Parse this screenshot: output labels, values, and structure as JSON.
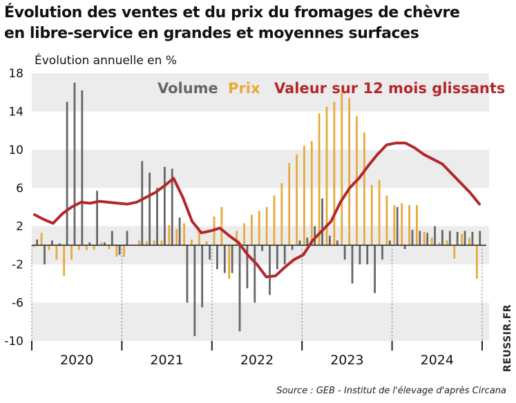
{
  "header": {
    "title_line1": "Évolution des ventes et du prix du fromages de chèvre",
    "title_line2": "en libre-service en grandes et moyennes surfaces"
  },
  "source": "Source : GEB - Institut de l'élevage d'après Circana",
  "watermark": "REUSSIR.FR",
  "colors": {
    "volume": "#666666",
    "prix": "#e8a93a",
    "valeur": "#b3272a",
    "band": "#ececec"
  },
  "chart_data": {
    "type": "bar",
    "ylabel": "Évolution annuelle en %",
    "ylim": [
      -10,
      18
    ],
    "yticks": [
      18,
      14,
      10,
      6,
      2,
      -2,
      -6,
      -10
    ],
    "ytick_labels": [
      "18",
      "14",
      "10",
      "6",
      "2",
      "-2",
      "-6",
      "-10"
    ],
    "years": [
      "2020",
      "2021",
      "2022",
      "2023",
      "2024"
    ],
    "months_per_year": 12,
    "series": [
      {
        "name": "Volume",
        "type": "bar",
        "values": [
          0.6,
          -2.0,
          0.5,
          0.2,
          15,
          17,
          16.2,
          0.3,
          5.7,
          0.3,
          1.5,
          -1.0,
          1.5,
          0,
          8.8,
          7.6,
          6.0,
          8.2,
          8.0,
          2.9,
          -6.0,
          -9.5,
          -6.5,
          -1.5,
          -2.5,
          -2.9,
          -2.9,
          -9.0,
          -4.5,
          -6.0,
          -0.6,
          -5.2,
          -2.5,
          -2.0,
          -0.5,
          0.5,
          0.8,
          2.0,
          4.9,
          1.0,
          0.5,
          -1.5,
          -4.0,
          -2.0,
          -2.0,
          -5.0,
          -1.5,
          0.5,
          4.0,
          -0.4,
          1.6,
          1.5,
          1.3,
          2.0,
          1.6,
          1.5,
          1.4,
          1.5,
          1.4,
          1.5
        ],
        "offsets": [
          0,
          1,
          0,
          1,
          0,
          1,
          0,
          1,
          0,
          1,
          0,
          1,
          0,
          1,
          0,
          1,
          0,
          1,
          0,
          1,
          0,
          1,
          0,
          1,
          0,
          1,
          0,
          1,
          0,
          1,
          0,
          1,
          0,
          1,
          0,
          1,
          0,
          1,
          0,
          1,
          0,
          1,
          0,
          1,
          0,
          1,
          0,
          1,
          0,
          1,
          0,
          1,
          0,
          1,
          0,
          1,
          0,
          1,
          0,
          1
        ]
      },
      {
        "name": "Prix",
        "type": "bar",
        "values": [
          -0.2,
          1.3,
          -0.5,
          -1.5,
          -3.2,
          -1.5,
          -0.5,
          -0.5,
          -0.5,
          0.3,
          -0.4,
          -1.2,
          -1.2,
          0,
          0.5,
          0.4,
          0.5,
          0.5,
          2.1,
          1.7,
          2.3,
          0.6,
          1.5,
          0.4,
          3.0,
          4.0,
          -3.5,
          1.5,
          2.3,
          3.2,
          3.6,
          4.0,
          5.2,
          6.5,
          8.6,
          9.5,
          10.4,
          10.9,
          13.8,
          14.5,
          15.0,
          16.0,
          15.4,
          13.5,
          11.8,
          6.3,
          6.8,
          5.2,
          4.2,
          4.4,
          4.2,
          4.2,
          1.4,
          0.8,
          0.3,
          0.5,
          -1.4,
          1.2,
          0.8,
          -3.5
        ]
      },
      {
        "name": "Valeur sur 12 mois glissants",
        "type": "line",
        "values": [
          3.2,
          2.7,
          2.3,
          3.3,
          4.0,
          4.5,
          4.4,
          4.6,
          4.5,
          4.4,
          4.3,
          4.5,
          5.0,
          5.5,
          6.2,
          7.0,
          5.0,
          2.5,
          1.3,
          1.5,
          1.8,
          1.0,
          0.3,
          -1.0,
          -2.0,
          -3.3,
          -3.2,
          -2.3,
          -1.5,
          -1.0,
          0.5,
          1.5,
          2.5,
          4.5,
          6.0,
          7.0,
          8.3,
          9.5,
          10.5,
          10.7,
          10.7,
          10.2,
          9.5,
          9.0,
          8.5,
          7.5,
          6.5,
          5.5,
          4.3
        ]
      }
    ]
  }
}
